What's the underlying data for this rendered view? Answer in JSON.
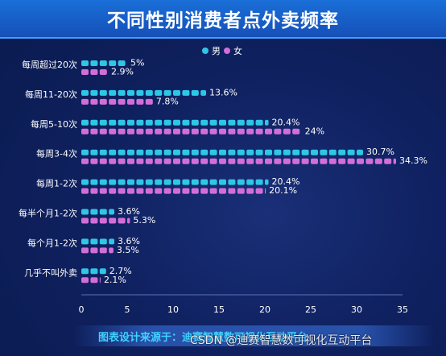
{
  "header": {
    "title": "不同性别消费者点外卖频率"
  },
  "footer": {
    "source": "图表设计来源于：迪赛智慧数可视化互动平台",
    "watermark": "CSDN @迪赛智慧数可视化互动平台"
  },
  "colors": {
    "male": "#2ec7e6",
    "female": "#d36ed9",
    "background": "#0f2160",
    "title_bar": "#1a63d0"
  },
  "chart_data": {
    "type": "bar",
    "orientation": "horizontal",
    "title": "不同性别消费者点外卖频率",
    "categories": [
      "每周超过20次",
      "每周11-20次",
      "每周5-10次",
      "每周3-4次",
      "每周1-2次",
      "每半个月1-2次",
      "每个月1-2次",
      "几乎不叫外卖"
    ],
    "series": [
      {
        "name": "男",
        "values": [
          5,
          13.6,
          20.4,
          30.7,
          20.4,
          3.6,
          3.6,
          2.7
        ],
        "labels": [
          "5%",
          "13.6%",
          "20.4%",
          "30.7%",
          "20.4%",
          "3.6%",
          "3.6%",
          "2.7%"
        ]
      },
      {
        "name": "女",
        "values": [
          2.9,
          7.8,
          24,
          34.3,
          20.1,
          5.3,
          3.5,
          2.1
        ],
        "labels": [
          "2.9%",
          "7.8%",
          "24%",
          "34.3%",
          "20.1%",
          "5.3%",
          "3.5%",
          "2.1%"
        ]
      }
    ],
    "xlim": [
      0,
      35
    ],
    "xticks": [
      "0",
      "5",
      "10",
      "15",
      "20",
      "25",
      "30",
      "35"
    ],
    "legend": {
      "placement": "top-right"
    },
    "grid": false
  }
}
